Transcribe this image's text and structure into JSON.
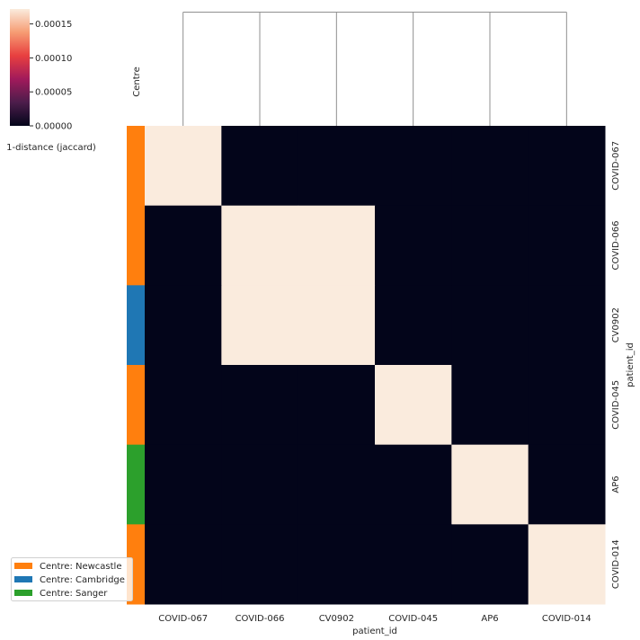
{
  "chart_data": {
    "type": "heatmap",
    "subtype": "clustermap",
    "x_labels": [
      "COVID-067",
      "COVID-066",
      "CV0902",
      "COVID-045",
      "AP6",
      "COVID-014"
    ],
    "y_labels": [
      "COVID-067",
      "COVID-066",
      "CV0902",
      "COVID-045",
      "AP6",
      "COVID-014"
    ],
    "xlabel": "patient_id",
    "ylabel": "patient_id",
    "values": [
      [
        0.000172,
        0,
        0,
        0,
        0,
        0
      ],
      [
        0,
        0.000172,
        0.000172,
        0,
        0,
        0
      ],
      [
        0,
        0.000172,
        0.000172,
        0,
        0,
        0
      ],
      [
        0,
        0,
        0,
        0.000172,
        0,
        0
      ],
      [
        0,
        0,
        0,
        0,
        0.000172,
        0
      ],
      [
        0,
        0,
        0,
        0,
        0,
        0.000172
      ]
    ],
    "colorbar": {
      "label": "1-distance (jaccard)",
      "range": [
        0,
        0.000172
      ],
      "ticks": [
        "0.00000",
        "0.00005",
        "0.00010",
        "0.00015"
      ],
      "tick_values": [
        0,
        5e-05,
        0.0001,
        0.00015
      ],
      "colormap": "rocket",
      "colors": [
        "#03051a",
        "#4c1d4b",
        "#a11a5b",
        "#e83f3f",
        "#f69c73",
        "#faebdd"
      ]
    },
    "row_colors": {
      "label": "Centre",
      "assignments": [
        "Centre: Newcastle",
        "Centre: Newcastle",
        "Centre: Cambridge",
        "Centre: Newcastle",
        "Centre: Sanger",
        "Centre: Newcastle"
      ]
    },
    "legend": {
      "placement": "bottom-left",
      "entries": [
        {
          "label": "Centre: Newcastle",
          "color": "#ff7f0e"
        },
        {
          "label": "Centre: Cambridge",
          "color": "#1f77b4"
        },
        {
          "label": "Centre: Sanger",
          "color": "#2ca02c"
        }
      ]
    },
    "dendrogram": {
      "position": "top",
      "merge_heights_equal": true,
      "line_color": "#909090"
    }
  }
}
